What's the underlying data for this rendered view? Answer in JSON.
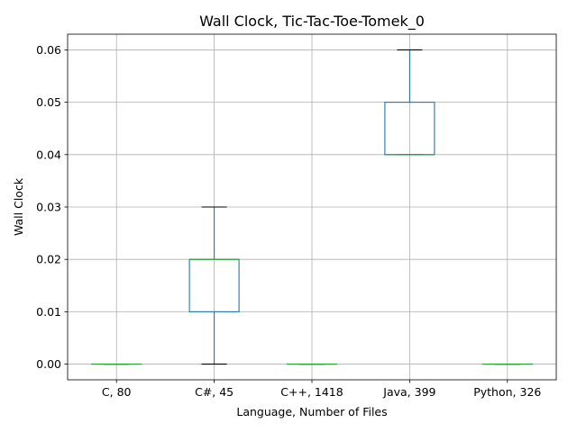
{
  "chart_data": {
    "type": "box",
    "title": "Wall Clock, Tic-Tac-Toe-Tomek_0",
    "xlabel": "Language, Number of Files",
    "ylabel": "Wall Clock",
    "categories": [
      "C, 80",
      "C#, 45",
      "C++, 1418",
      "Java, 399",
      "Python, 326"
    ],
    "boxes": [
      {
        "whisker_low": 0.0,
        "q1": 0.0,
        "median": 0.0,
        "q3": 0.0,
        "whisker_high": 0.0
      },
      {
        "whisker_low": 0.0,
        "q1": 0.01,
        "median": 0.02,
        "q3": 0.02,
        "whisker_high": 0.03
      },
      {
        "whisker_low": 0.0,
        "q1": 0.0,
        "median": 0.0,
        "q3": 0.0,
        "whisker_high": 0.0
      },
      {
        "whisker_low": 0.04,
        "q1": 0.04,
        "median": 0.04,
        "q3": 0.05,
        "whisker_high": 0.06
      },
      {
        "whisker_low": 0.0,
        "q1": 0.0,
        "median": 0.0,
        "q3": 0.0,
        "whisker_high": 0.0
      }
    ],
    "yticks": [
      "0.00",
      "0.01",
      "0.02",
      "0.03",
      "0.04",
      "0.05",
      "0.06"
    ],
    "ylim": [
      -0.003,
      0.063
    ],
    "grid": true,
    "colors": {
      "box": "#1f77b4",
      "median": "#2ca02c",
      "whisker_cap": "#000000",
      "grid": "#b0b0b0"
    }
  }
}
